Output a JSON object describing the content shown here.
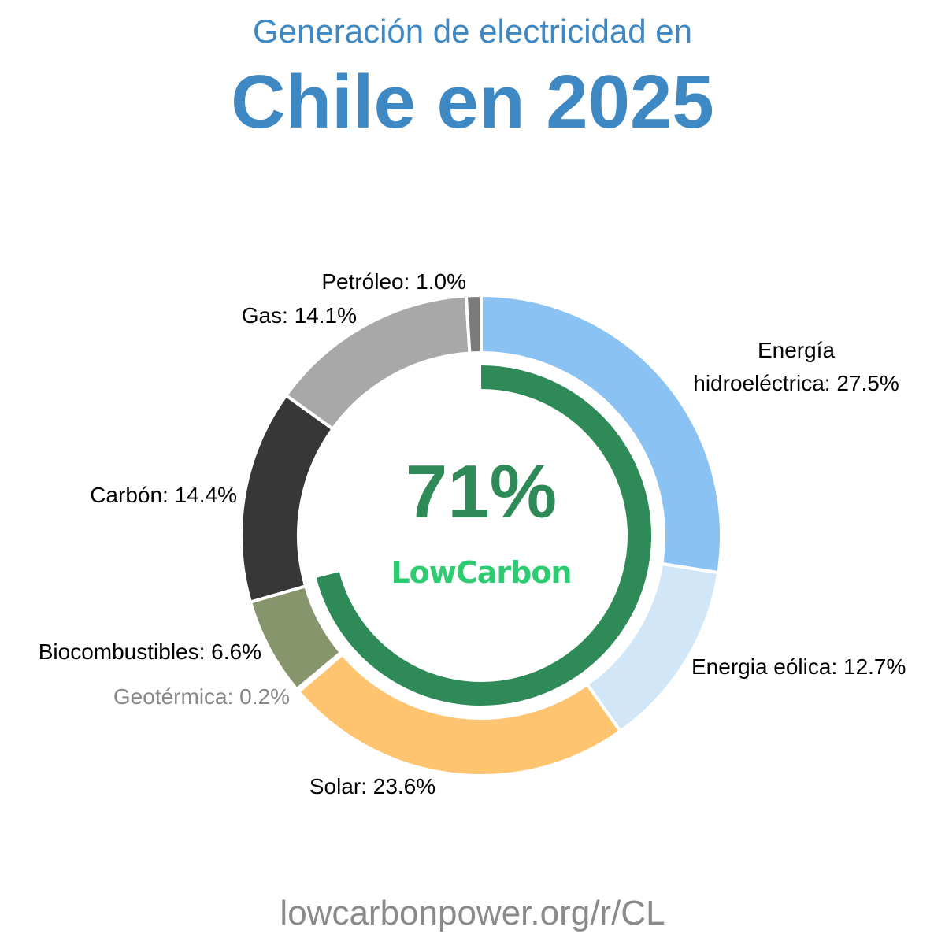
{
  "chart_data": {
    "type": "pie",
    "subtitle": "Generación de electricidad en",
    "title": "Chile en 2025",
    "series": [
      {
        "name": "Energía hidroeléctrica",
        "label_lines": [
          "Energía",
          "hidroeléctrica: 27.5%"
        ],
        "value": 27.5,
        "color": "#89c2f3"
      },
      {
        "name": "Energia eólica",
        "label_lines": [
          "Energia eólica: 12.7%"
        ],
        "value": 12.7,
        "color": "#d1e6f7"
      },
      {
        "name": "Solar",
        "label_lines": [
          "Solar: 23.6%"
        ],
        "value": 23.6,
        "color": "#fec46f"
      },
      {
        "name": "Geotérmica",
        "label_lines": [
          "Geotérmica: 0.2%"
        ],
        "value": 0.2,
        "color": "#a05a2c",
        "muted": true
      },
      {
        "name": "Biocombustibles",
        "label_lines": [
          "Biocombustibles: 6.6%"
        ],
        "value": 6.6,
        "color": "#87956d"
      },
      {
        "name": "Carbón",
        "label_lines": [
          "Carbón: 14.4%"
        ],
        "value": 14.4,
        "color": "#373737"
      },
      {
        "name": "Gas",
        "label_lines": [
          "Gas: 14.1%"
        ],
        "value": 14.1,
        "color": "#a8a8a8"
      },
      {
        "name": "Petróleo",
        "label_lines": [
          "Petróleo: 1.0%"
        ],
        "value": 1.0,
        "color": "#7b7b7b"
      }
    ],
    "low_carbon": {
      "value": 71,
      "label": "71%",
      "brand": "LowCarbon",
      "ring_color": "#2e8b57",
      "brand_color": "#2ecc71"
    }
  },
  "footer": {
    "url": "lowcarbonpower.org/r/CL",
    "color": "#8a8a8a"
  },
  "colors": {
    "title": "#3e88c4"
  }
}
